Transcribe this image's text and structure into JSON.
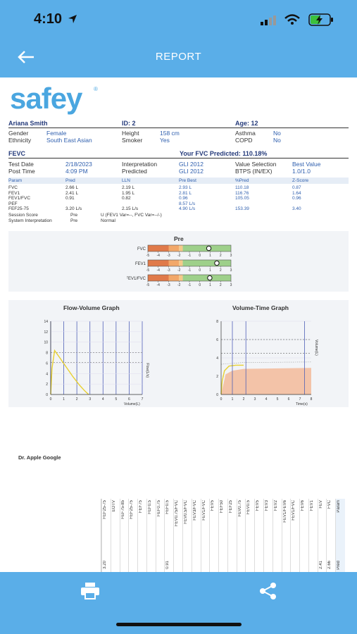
{
  "status": {
    "time": "4:10"
  },
  "header": {
    "title": "REPORT"
  },
  "logo": {
    "text": "safey",
    "reg": "®"
  },
  "patient": {
    "name": "Ariana Smith",
    "id": "ID: 2",
    "age": "Age: 12",
    "gender_label": "Gender",
    "gender": "Female",
    "ethnicity_label": "Ethnicity",
    "ethnicity": "South East Asian",
    "height_label": "Height",
    "height": "158 cm",
    "smoker_label": "Smoker",
    "smoker": "Yes",
    "asthma_label": "Asthma",
    "asthma": "No",
    "copd_label": "COPD",
    "copd": "No"
  },
  "fevc": {
    "title": "FEVC",
    "predicted": "Your FVC Predicted: 110.18%",
    "test_date_label": "Test Date",
    "test_date": "2/18/2023",
    "post_time_label": "Post Time",
    "post_time": "4:09 PM",
    "interp_label": "Interpretation",
    "interp": "GLI 2012",
    "predicted_label": "Predicted",
    "predicted_val": "GLI 2012",
    "value_sel_label": "Value Selection",
    "value_sel": "Best Value",
    "btps_label": "BTPS (IN/EX)",
    "btps": "1.0/1.0"
  },
  "table": {
    "headers": [
      "Param",
      "Pred",
      "LLN",
      "Pre Best",
      "%Pred",
      "Z-Score"
    ],
    "rows": [
      [
        "FVC",
        "2.66 L",
        "2.19 L",
        "2.93 L",
        "110.18",
        "0.87"
      ],
      [
        "FEV1",
        "2.41 L",
        "1.95 L",
        "2.81 L",
        "116.76",
        "1.64"
      ],
      [
        "FEV1/FVC",
        "0.91",
        "0.82",
        "0.96",
        "105.05",
        "0.96"
      ],
      [
        "PEF",
        "",
        "",
        "8.57 L/s",
        "",
        ""
      ],
      [
        "FEF25-75",
        "3.20 L/s",
        "2.15 L/s",
        "4.90 L/s",
        "153.39",
        "3.40"
      ]
    ],
    "session_label": "Session Score",
    "session_val": "Pre",
    "session_note": "U (FEV1 Var=--, FVC Var=--/-)",
    "sysint_label": "System Interpretation",
    "sysint_val": "Pre",
    "sysint_note": "Normal"
  },
  "zscore": {
    "title": "Pre",
    "ticks": [
      "-5",
      "-4",
      "-3",
      "-2",
      "-1",
      "0",
      "1",
      "2",
      "3"
    ],
    "rows": [
      {
        "label": "FVC",
        "z": 0.87
      },
      {
        "label": "FEV1",
        "z": 1.64
      },
      {
        "label": "FEV1/FVC",
        "z": 0.96
      }
    ]
  },
  "fv_graph": {
    "title": "Flow-Volume Graph",
    "ylabel": "Flow(L/s)",
    "xlabel": "Volume(L)",
    "yticks": [
      "14",
      "12",
      "10",
      "8",
      "6",
      "4",
      "2",
      "0"
    ],
    "xticks": [
      "0",
      "1",
      "2",
      "3",
      "4",
      "5",
      "6",
      "7"
    ]
  },
  "vt_graph": {
    "title": "Volume-Time Graph",
    "ylabel": "Volume(L)",
    "xlabel": "Time(s)",
    "yticks": [
      "8",
      "6",
      "4",
      "2",
      "0"
    ],
    "xticks": [
      "0",
      "1",
      "2",
      "3",
      "4",
      "5",
      "6",
      "7",
      "8"
    ]
  },
  "doctor": {
    "name": "Dr. Apple Google"
  },
  "rotated_table": {
    "columns": [
      "Param",
      "FVC",
      "FEV",
      "FEV1",
      "FEV6",
      "FEV1/FVC",
      "FEV1/FEV6",
      "FEV2",
      "FEV3",
      "FEV5",
      "FEV0.5",
      "FEV0.75",
      "FEF25",
      "FEF50",
      "FEV5",
      "FEV1/FVC",
      "FEV3/FVC",
      "FEV0.5/FVC",
      "FEV0.75/FVC",
      "FEF0.5",
      "FEF0.75",
      "FEF0.5",
      "FEF75",
      "FEF25-75",
      "FEF75-85",
      "EOTV",
      "FEF25-75"
    ],
    "values": [
      "Pred",
      "2.66",
      "2.41",
      "",
      "",
      "",
      "",
      "",
      "",
      "",
      "",
      "",
      "",
      "",
      "",
      "",
      "",
      "",
      "",
      "0.91",
      "",
      "",
      "",
      "",
      "",
      "",
      "3.20"
    ]
  }
}
